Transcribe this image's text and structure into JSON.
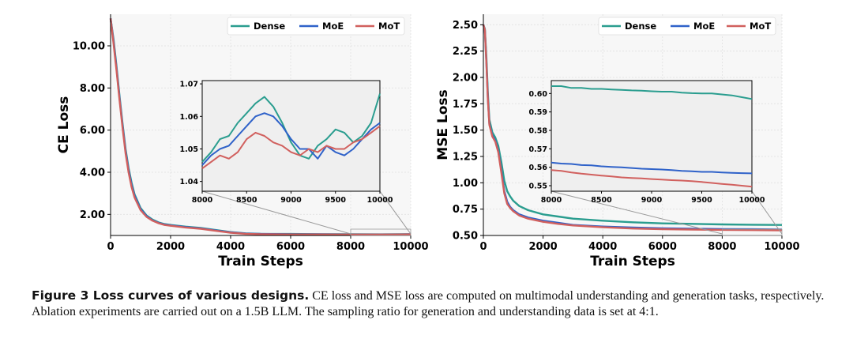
{
  "caption": {
    "label": "Figure 3  Loss curves of various designs.",
    "text": " CE loss and MSE loss are computed on multimodal understanding and generation tasks, respectively. Ablation experiments are carried out on a 1.5B LLM. The sampling ratio for generation and understanding data is set at 4:1."
  },
  "chart_data": [
    {
      "type": "line",
      "title": "",
      "xlabel": "Train Steps",
      "ylabel": "CE Loss",
      "xlim": [
        0,
        10000
      ],
      "ylim": [
        1,
        11.5
      ],
      "xticks": [
        0,
        2000,
        4000,
        6000,
        8000,
        10000
      ],
      "xtick_labels": [
        "0",
        "2000",
        "4000",
        "6000",
        "8000",
        "10000"
      ],
      "yticks": [
        2,
        4,
        6,
        8,
        10
      ],
      "ytick_labels": [
        "2.00",
        "4.00",
        "6.00",
        "8.00",
        "10.00"
      ],
      "grid": true,
      "legend": "top-right",
      "x": [
        0,
        100,
        200,
        300,
        400,
        500,
        600,
        700,
        800,
        1000,
        1200,
        1400,
        1600,
        1800,
        2000,
        2500,
        3000,
        3500,
        4000,
        4500,
        5000,
        6000,
        7000,
        8000,
        9000,
        10000
      ],
      "series": [
        {
          "name": "Dense",
          "color": "#2a9d8f",
          "values": [
            11.3,
            10.3,
            9.0,
            7.6,
            6.3,
            5.1,
            4.2,
            3.5,
            2.95,
            2.3,
            1.95,
            1.75,
            1.62,
            1.54,
            1.5,
            1.42,
            1.36,
            1.26,
            1.16,
            1.1,
            1.08,
            1.07,
            1.06,
            1.055,
            1.052,
            1.06
          ]
        },
        {
          "name": "MoE",
          "color": "#2f62c9",
          "values": [
            11.3,
            10.2,
            8.9,
            7.5,
            6.2,
            5.0,
            4.1,
            3.4,
            2.88,
            2.25,
            1.92,
            1.72,
            1.6,
            1.52,
            1.48,
            1.4,
            1.34,
            1.24,
            1.15,
            1.09,
            1.07,
            1.06,
            1.055,
            1.05,
            1.05,
            1.057
          ]
        },
        {
          "name": "MoT",
          "color": "#d1605e",
          "values": [
            11.3,
            10.1,
            8.8,
            7.4,
            6.1,
            4.9,
            4.0,
            3.3,
            2.8,
            2.2,
            1.88,
            1.7,
            1.58,
            1.5,
            1.46,
            1.38,
            1.32,
            1.22,
            1.13,
            1.08,
            1.06,
            1.05,
            1.048,
            1.045,
            1.046,
            1.054
          ]
        }
      ],
      "inset": {
        "xlim": [
          8000,
          10000
        ],
        "ylim": [
          1.037,
          1.071
        ],
        "xticks": [
          8000,
          8500,
          9000,
          9500,
          10000
        ],
        "xtick_labels": [
          "8000",
          "8500",
          "9000",
          "9500",
          "10000"
        ],
        "yticks": [
          1.04,
          1.05,
          1.06,
          1.07
        ],
        "ytick_labels": [
          "1.04",
          "1.05",
          "1.06",
          "1.07"
        ],
        "x": [
          8000,
          8100,
          8200,
          8300,
          8400,
          8500,
          8600,
          8700,
          8800,
          8900,
          9000,
          9100,
          9200,
          9300,
          9400,
          9500,
          9600,
          9700,
          9800,
          9900,
          10000
        ],
        "series": [
          {
            "name": "Dense",
            "values": [
              1.046,
              1.049,
              1.053,
              1.054,
              1.058,
              1.061,
              1.064,
              1.066,
              1.063,
              1.058,
              1.052,
              1.048,
              1.047,
              1.051,
              1.053,
              1.056,
              1.055,
              1.052,
              1.054,
              1.058,
              1.067
            ]
          },
          {
            "name": "MoE",
            "values": [
              1.045,
              1.048,
              1.05,
              1.051,
              1.054,
              1.057,
              1.06,
              1.061,
              1.06,
              1.057,
              1.053,
              1.05,
              1.05,
              1.047,
              1.051,
              1.049,
              1.048,
              1.05,
              1.053,
              1.056,
              1.058
            ]
          },
          {
            "name": "MoT",
            "values": [
              1.044,
              1.046,
              1.048,
              1.047,
              1.049,
              1.053,
              1.055,
              1.054,
              1.052,
              1.051,
              1.049,
              1.048,
              1.05,
              1.049,
              1.051,
              1.05,
              1.05,
              1.052,
              1.053,
              1.055,
              1.057
            ]
          }
        ]
      }
    },
    {
      "type": "line",
      "title": "",
      "xlabel": "Train Steps",
      "ylabel": "MSE Loss",
      "xlim": [
        0,
        10000
      ],
      "ylim": [
        0.5,
        2.6
      ],
      "xticks": [
        0,
        2000,
        4000,
        6000,
        8000,
        10000
      ],
      "xtick_labels": [
        "0",
        "2000",
        "4000",
        "6000",
        "8000",
        "10000"
      ],
      "yticks": [
        0.5,
        0.75,
        1.0,
        1.25,
        1.5,
        1.75,
        2.0,
        2.25,
        2.5
      ],
      "ytick_labels": [
        "0.50",
        "0.75",
        "1.00",
        "1.25",
        "1.50",
        "1.75",
        "2.00",
        "2.25",
        "2.50"
      ],
      "grid": true,
      "legend": "top-right",
      "x": [
        0,
        50,
        100,
        150,
        200,
        300,
        400,
        500,
        600,
        700,
        800,
        900,
        1000,
        1200,
        1500,
        2000,
        2500,
        3000,
        4000,
        5000,
        6000,
        7000,
        8000,
        9000,
        10000
      ],
      "series": [
        {
          "name": "Dense",
          "color": "#2a9d8f",
          "values": [
            2.5,
            2.46,
            2.2,
            1.85,
            1.6,
            1.48,
            1.43,
            1.35,
            1.2,
            1.02,
            0.92,
            0.87,
            0.83,
            0.78,
            0.74,
            0.7,
            0.68,
            0.66,
            0.64,
            0.625,
            0.615,
            0.61,
            0.605,
            0.602,
            0.6
          ]
        },
        {
          "name": "MoE",
          "color": "#2f62c9",
          "values": [
            2.5,
            2.45,
            2.15,
            1.8,
            1.56,
            1.45,
            1.4,
            1.3,
            1.12,
            0.92,
            0.82,
            0.77,
            0.74,
            0.7,
            0.67,
            0.64,
            0.62,
            0.6,
            0.585,
            0.575,
            0.568,
            0.564,
            0.561,
            0.559,
            0.557
          ]
        },
        {
          "name": "MoT",
          "color": "#d1605e",
          "values": [
            2.5,
            2.45,
            2.14,
            1.79,
            1.55,
            1.44,
            1.39,
            1.29,
            1.1,
            0.9,
            0.8,
            0.76,
            0.73,
            0.69,
            0.66,
            0.63,
            0.61,
            0.595,
            0.578,
            0.566,
            0.56,
            0.556,
            0.553,
            0.551,
            0.549
          ]
        }
      ],
      "inset": {
        "xlim": [
          8000,
          10000
        ],
        "ylim": [
          0.547,
          0.607
        ],
        "xticks": [
          8000,
          8500,
          9000,
          9500,
          10000
        ],
        "xtick_labels": [
          "8000",
          "8500",
          "9000",
          "9500",
          "10000"
        ],
        "yticks": [
          0.55,
          0.56,
          0.57,
          0.58,
          0.59,
          0.6
        ],
        "ytick_labels": [
          "0.55",
          "0.56",
          "0.57",
          "0.58",
          "0.59",
          "0.60"
        ],
        "x": [
          8000,
          8100,
          8200,
          8300,
          8400,
          8500,
          8600,
          8700,
          8800,
          8900,
          9000,
          9100,
          9200,
          9300,
          9400,
          9500,
          9600,
          9700,
          9800,
          9900,
          10000
        ],
        "series": [
          {
            "name": "Dense",
            "values": [
              0.604,
              0.604,
              0.603,
              0.603,
              0.6025,
              0.6025,
              0.6022,
              0.602,
              0.6017,
              0.6015,
              0.6012,
              0.601,
              0.601,
              0.6005,
              0.6002,
              0.6,
              0.6,
              0.5995,
              0.599,
              0.598,
              0.597
            ]
          },
          {
            "name": "MoE",
            "values": [
              0.5625,
              0.562,
              0.5618,
              0.5612,
              0.561,
              0.5605,
              0.5602,
              0.56,
              0.5596,
              0.5592,
              0.559,
              0.5588,
              0.5585,
              0.558,
              0.5578,
              0.5575,
              0.5575,
              0.5572,
              0.557,
              0.5568,
              0.5567
            ]
          },
          {
            "name": "MoT",
            "values": [
              0.5585,
              0.558,
              0.5572,
              0.5565,
              0.556,
              0.5555,
              0.555,
              0.5545,
              0.5542,
              0.554,
              0.5536,
              0.5533,
              0.553,
              0.5528,
              0.5525,
              0.552,
              0.5515,
              0.551,
              0.5505,
              0.55,
              0.5495
            ]
          }
        ]
      }
    }
  ]
}
